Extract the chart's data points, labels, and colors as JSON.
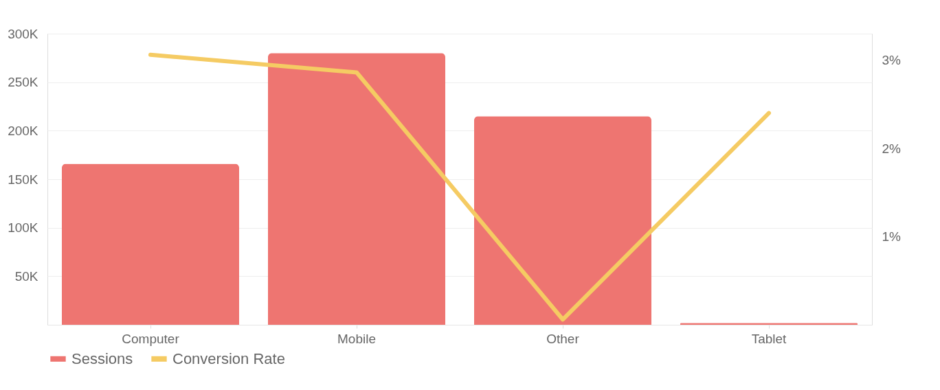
{
  "chart_data": {
    "type": "bar",
    "categories": [
      "Computer",
      "Mobile",
      "Other",
      "Tablet"
    ],
    "series": [
      {
        "name": "Sessions",
        "color": "#ee7571",
        "values": [
          166000,
          280000,
          215000,
          2000
        ]
      },
      {
        "name": "Conversion Rate",
        "type": "line",
        "axis": "y2",
        "color": "#f5cb63",
        "values": [
          3.06,
          2.86,
          0.06,
          2.4
        ]
      }
    ],
    "ylim": [
      0,
      300000
    ],
    "yticks": [
      {
        "value": 50000,
        "label": "50K"
      },
      {
        "value": 100000,
        "label": "100K"
      },
      {
        "value": 150000,
        "label": "150K"
      },
      {
        "value": 200000,
        "label": "200K"
      },
      {
        "value": 250000,
        "label": "250K"
      },
      {
        "value": 300000,
        "label": "300K"
      }
    ],
    "y2lim": [
      0,
      3.3
    ],
    "y2ticks": [
      {
        "value": 1,
        "label": "1%"
      },
      {
        "value": 2,
        "label": "2%"
      },
      {
        "value": 3,
        "label": "3%"
      }
    ],
    "grid": "y",
    "legend": "bottom left"
  }
}
